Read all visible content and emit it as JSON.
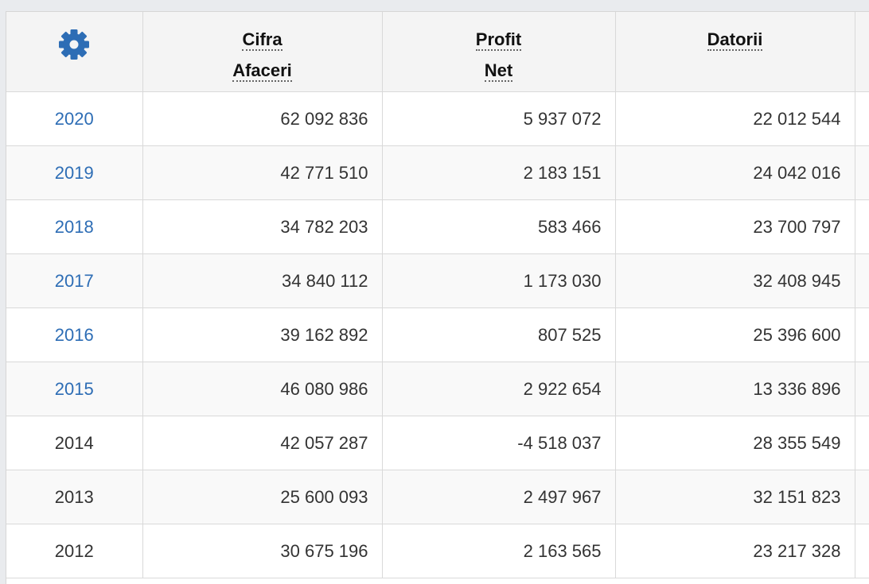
{
  "header": {
    "settings_icon": "gear-icon",
    "columns": [
      {
        "lines": [
          "Cifra",
          "Afaceri"
        ]
      },
      {
        "lines": [
          "Profit",
          "Net"
        ]
      },
      {
        "lines": [
          "Datorii"
        ]
      }
    ]
  },
  "colors": {
    "link": "#2d6db5",
    "text": "#333333",
    "header_bg": "#f4f4f4",
    "icon": "#2d6db5"
  },
  "rows": [
    {
      "year": "2020",
      "link": true,
      "cifra_afaceri": "62 092 836",
      "profit_net": "5 937 072",
      "datorii": "22 012 544"
    },
    {
      "year": "2019",
      "link": true,
      "cifra_afaceri": "42 771 510",
      "profit_net": "2 183 151",
      "datorii": "24 042 016"
    },
    {
      "year": "2018",
      "link": true,
      "cifra_afaceri": "34 782 203",
      "profit_net": "583 466",
      "datorii": "23 700 797"
    },
    {
      "year": "2017",
      "link": true,
      "cifra_afaceri": "34 840 112",
      "profit_net": "1 173 030",
      "datorii": "32 408 945"
    },
    {
      "year": "2016",
      "link": true,
      "cifra_afaceri": "39 162 892",
      "profit_net": "807 525",
      "datorii": "25 396 600"
    },
    {
      "year": "2015",
      "link": true,
      "cifra_afaceri": "46 080 986",
      "profit_net": "2 922 654",
      "datorii": "13 336 896"
    },
    {
      "year": "2014",
      "link": false,
      "cifra_afaceri": "42 057 287",
      "profit_net": "-4 518 037",
      "datorii": "28 355 549"
    },
    {
      "year": "2013",
      "link": false,
      "cifra_afaceri": "25 600 093",
      "profit_net": "2 497 967",
      "datorii": "32 151 823"
    },
    {
      "year": "2012",
      "link": false,
      "cifra_afaceri": "30 675 196",
      "profit_net": "2 163 565",
      "datorii": "23 217 328"
    }
  ]
}
